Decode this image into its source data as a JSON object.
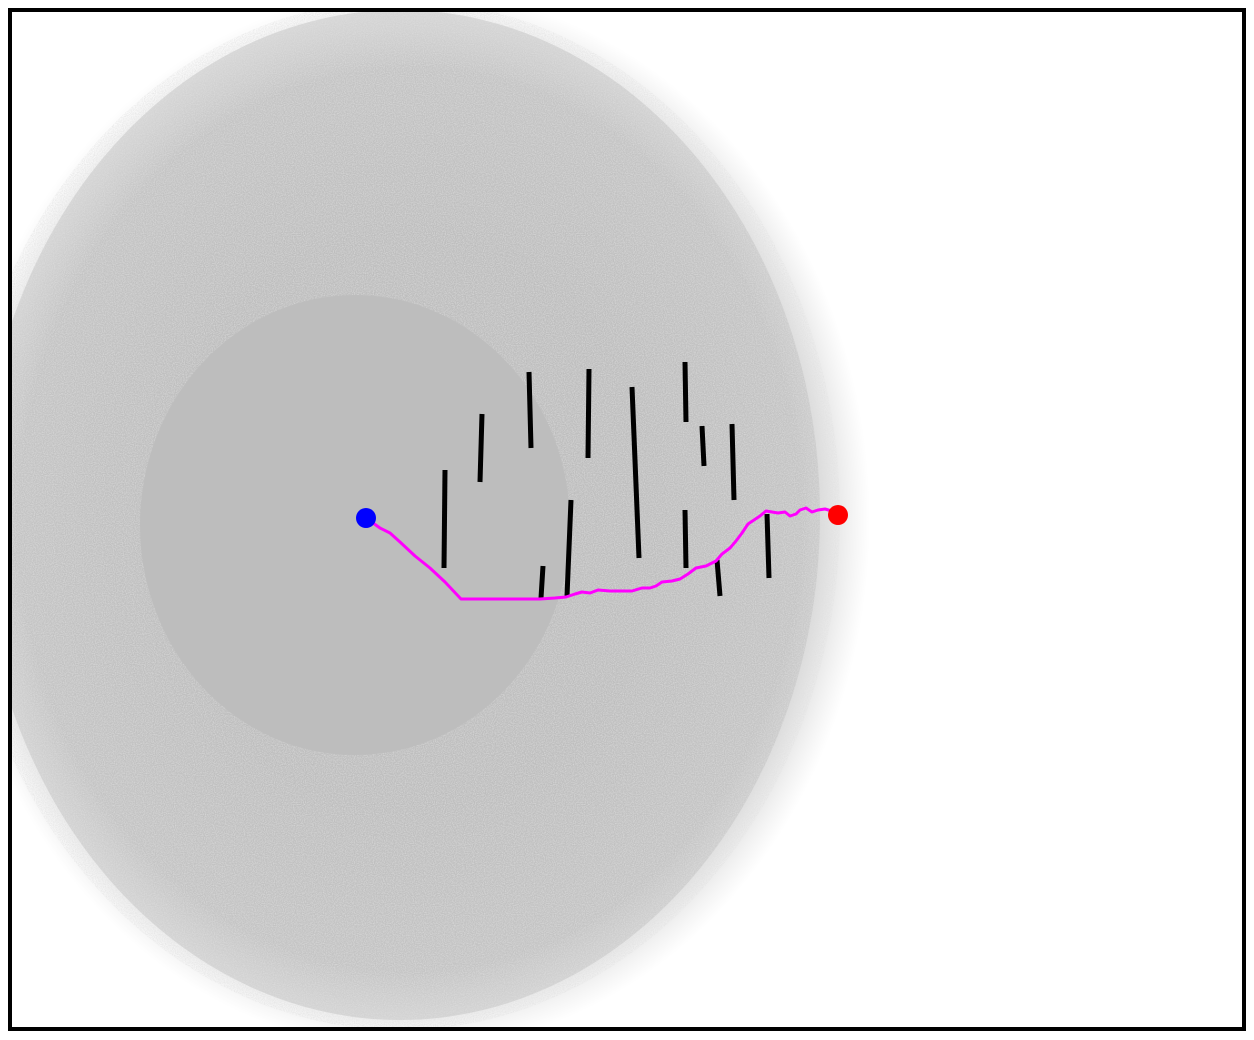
{
  "scene": {
    "description_kind": "path-planning-visualization",
    "background_color": "#ffffff",
    "border_color": "#000000",
    "explored_region_color": "#bdbdbd",
    "explored_region_fringe_color": "#c8c8c8",
    "obstacle_color": "#000000",
    "path_color": "#ff00ff",
    "start_marker_color": "#0000ff",
    "goal_marker_color": "#ff0000"
  },
  "markers": {
    "start": {
      "name": "start-point",
      "color": "#0000ff"
    },
    "goal": {
      "name": "goal-point",
      "color": "#ff0000"
    }
  },
  "obstacles": {
    "count": 15
  },
  "path": {
    "name": "planned-path"
  }
}
